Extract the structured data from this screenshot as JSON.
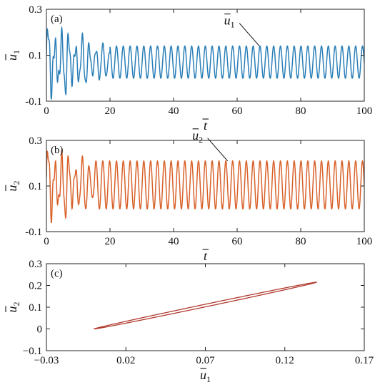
{
  "colors": {
    "u1_line": "#2a7fb8",
    "u2_line": "#d9622b",
    "phase_line": "#b03a2e",
    "axis": "#222222",
    "background": "#ffffff"
  },
  "chart_data": [
    {
      "panel": "(a)",
      "type": "line",
      "xlabel": "t",
      "ylabel": "u1",
      "xlim": [
        0,
        100
      ],
      "ylim": [
        -0.1,
        0.3
      ],
      "xticks": [
        "0",
        "20",
        "40",
        "60",
        "80",
        "100"
      ],
      "xtick_values": [
        0,
        20,
        40,
        60,
        80,
        100
      ],
      "yticks": [
        "-0.1",
        "0.1",
        "0.3"
      ],
      "ytick_values": [
        -0.1,
        0.1,
        0.3
      ],
      "series": [
        {
          "name": "u1",
          "color": "#2a7fb8",
          "period": 2.15,
          "steady_min": 0.0,
          "steady_max": 0.14,
          "transient_end": 20,
          "transient_min": -0.09,
          "transient_max": 0.23
        }
      ],
      "annotation": {
        "text": "u1",
        "at": [
          67,
          0.14
        ]
      },
      "grid": false
    },
    {
      "panel": "(b)",
      "type": "line",
      "xlabel": "t",
      "ylabel": "u2",
      "xlim": [
        0,
        100
      ],
      "ylim": [
        -0.1,
        0.3
      ],
      "xticks": [
        "0",
        "20",
        "40",
        "60",
        "80",
        "100"
      ],
      "xtick_values": [
        0,
        20,
        40,
        60,
        80,
        100
      ],
      "yticks": [
        "-0.1",
        "0.1",
        "0.3"
      ],
      "ytick_values": [
        -0.1,
        0.1,
        0.3
      ],
      "series": [
        {
          "name": "u2",
          "color": "#d9622b",
          "period": 2.15,
          "steady_min": 0.0,
          "steady_max": 0.21,
          "transient_end": 15,
          "transient_min": -0.06,
          "transient_max": 0.27
        }
      ],
      "annotation": {
        "text": "u2",
        "at": [
          57,
          0.21
        ]
      },
      "grid": false
    },
    {
      "panel": "(c)",
      "type": "line",
      "xlabel": "u1",
      "ylabel": "u2",
      "xlim": [
        -0.03,
        0.17
      ],
      "ylim": [
        -0.1,
        0.3
      ],
      "xticks": [
        "−0.03",
        "0.02",
        "0.07",
        "0.12",
        "0.17"
      ],
      "xtick_values": [
        -0.03,
        0.02,
        0.07,
        0.12,
        0.17
      ],
      "yticks": [
        "−0.1",
        "0",
        "0.1",
        "0.2",
        "0.3"
      ],
      "ytick_values": [
        -0.1,
        0,
        0.1,
        0.2,
        0.3
      ],
      "series": [
        {
          "name": "phase trajectory",
          "color": "#b03a2e",
          "x_range": [
            0.0,
            0.14
          ],
          "y_range": [
            0.0,
            0.215
          ]
        }
      ],
      "grid": false
    }
  ]
}
